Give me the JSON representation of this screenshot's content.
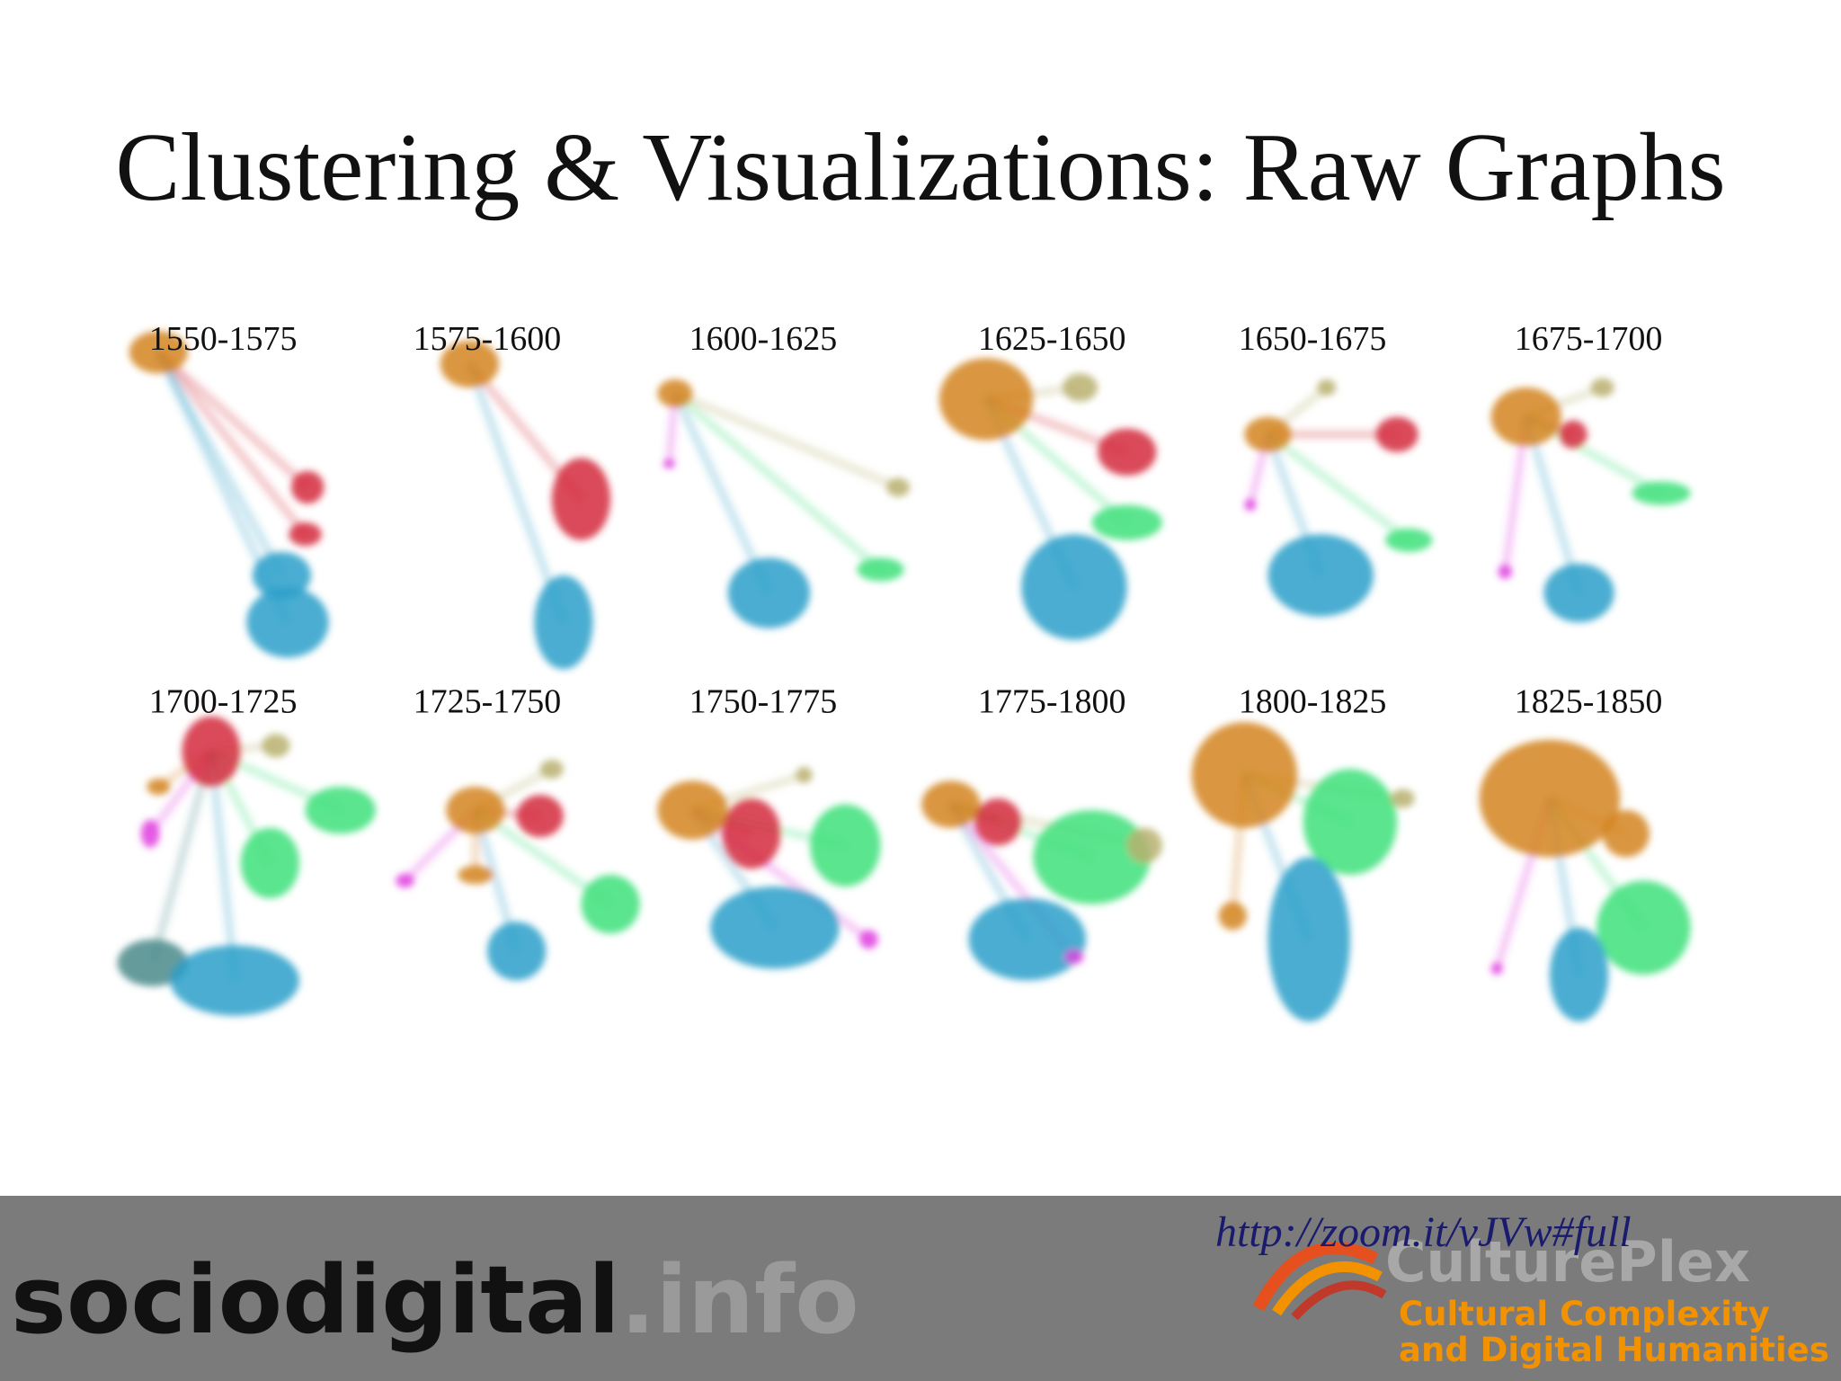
{
  "title": "Clustering & Visualizations: Raw Graphs",
  "panels": [
    {
      "label": "1550-1575"
    },
    {
      "label": "1575-1600"
    },
    {
      "label": "1600-1625"
    },
    {
      "label": "1625-1650"
    },
    {
      "label": "1650-1675"
    },
    {
      "label": "1675-1700"
    },
    {
      "label": "1700-1725"
    },
    {
      "label": "1725-1750"
    },
    {
      "label": "1750-1775"
    },
    {
      "label": "1775-1800"
    },
    {
      "label": "1800-1825"
    },
    {
      "label": "1825-1850"
    }
  ],
  "footer": {
    "logo_main": "sociodigital",
    "logo_suffix": ".info",
    "link": "http://zoom.it/vJVw#full",
    "brand": "CulturePlex",
    "brand_line1": "Cultural Complexity",
    "brand_line2": "and Digital Humanities"
  }
}
